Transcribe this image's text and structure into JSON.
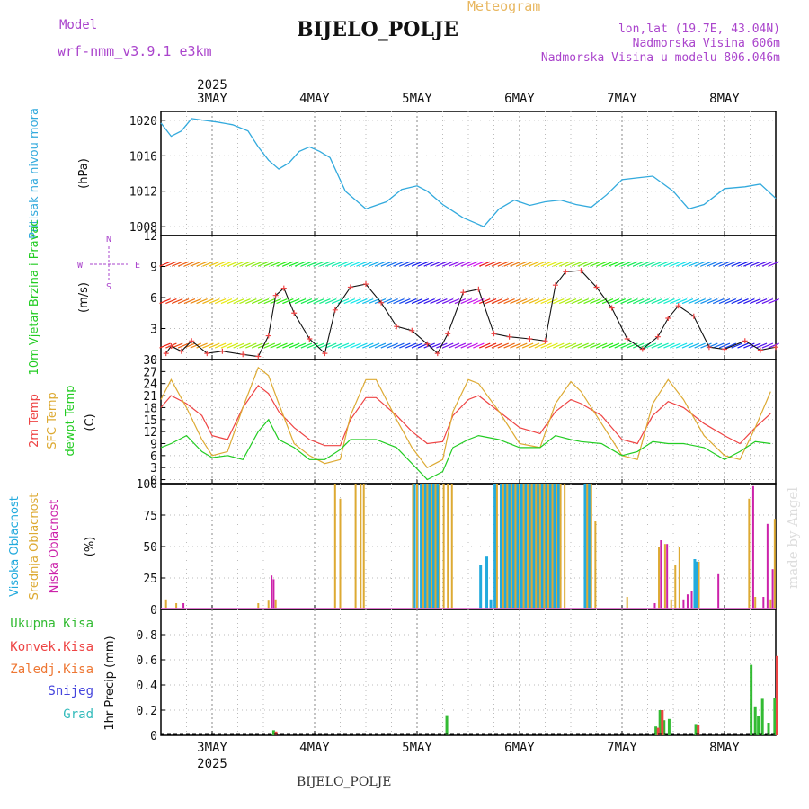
{
  "header": {
    "meteogram_label": "Meteogram",
    "model_label": "Model",
    "model_name": "wrf-nmm_v3.9.1  e3km",
    "station": "BIJELO_POLJE",
    "coords": "lon,lat (19.7E, 43.04N)",
    "altitude": "Nadmorska Visina 606m",
    "model_altitude": "Nadmorska Visina u modelu 806.046m"
  },
  "footer": {
    "station": "BIJELO_POLJE",
    "credit": "made by Angel"
  },
  "colors": {
    "pressure": "#33aadd",
    "temp2m": "#ee4444",
    "sfc": "#ddaa33",
    "dewpt": "#22cc22",
    "high_cloud": "#22aadd",
    "mid_cloud": "#ddaa33",
    "low_cloud": "#cc22aa",
    "total_precip": "#33bb33",
    "conv_precip": "#ee4444",
    "frozen_precip": "#ee7733",
    "snow": "#4444dd",
    "grad": "#33bbbb",
    "purple_text": "#aa44cc"
  },
  "chart_data": {
    "type": "line",
    "title": "Meteogram BIJELO_POLJE",
    "time_axis": {
      "start_day": 2.5,
      "end_day": 8.5,
      "day_labels": [
        "3MAY",
        "4MAY",
        "5MAY",
        "6MAY",
        "7MAY",
        "8MAY"
      ],
      "day_values": [
        3,
        4,
        5,
        6,
        7,
        8
      ],
      "year_label": "2025"
    },
    "panels": [
      {
        "id": "pressure",
        "ylabel": "(hPa)",
        "side_label": "Pritisak na nivou mora",
        "ylim": [
          1007,
          1021
        ],
        "yticks": [
          1008,
          1012,
          1016,
          1020
        ],
        "series": [
          {
            "name": "Pritisak na nivou mora",
            "x": [
              2.5,
              2.6,
              2.7,
              2.8,
              2.92,
              3.05,
              3.2,
              3.35,
              3.45,
              3.55,
              3.65,
              3.75,
              3.85,
              3.95,
              4.05,
              4.15,
              4.3,
              4.5,
              4.7,
              4.85,
              5.0,
              5.1,
              5.25,
              5.45,
              5.55,
              5.65,
              5.8,
              5.95,
              6.1,
              6.25,
              6.4,
              6.55,
              6.7,
              6.85,
              7.0,
              7.15,
              7.3,
              7.5,
              7.65,
              7.8,
              8.0,
              8.2,
              8.35,
              8.5
            ],
            "y": [
              1019.7,
              1018.2,
              1018.8,
              1020.2,
              1020.0,
              1019.8,
              1019.5,
              1018.8,
              1017.0,
              1015.5,
              1014.5,
              1015.2,
              1016.5,
              1017.0,
              1016.5,
              1015.8,
              1012.0,
              1010.0,
              1010.8,
              1012.2,
              1012.6,
              1012.0,
              1010.5,
              1009.0,
              1008.5,
              1008.0,
              1010.0,
              1011.0,
              1010.4,
              1010.8,
              1011.0,
              1010.5,
              1010.2,
              1011.6,
              1013.3,
              1013.5,
              1013.7,
              1012.0,
              1010.0,
              1010.5,
              1012.3,
              1012.5,
              1012.8,
              1011.2
            ]
          }
        ]
      },
      {
        "id": "wind",
        "ylabel": "(m/s)",
        "side_label": "10m Vjetar Brzina i Pravac",
        "compass": {
          "n": "N",
          "w": "W",
          "e": "E",
          "s": "S"
        },
        "ylim": [
          0,
          12
        ],
        "yticks": [
          0,
          3,
          6,
          9,
          12
        ],
        "series": [
          {
            "name": "10m wind speed",
            "x": [
              2.55,
              2.6,
              2.7,
              2.8,
              2.95,
              3.1,
              3.3,
              3.45,
              3.55,
              3.62,
              3.7,
              3.8,
              3.95,
              4.1,
              4.2,
              4.35,
              4.5,
              4.65,
              4.8,
              4.95,
              5.1,
              5.2,
              5.3,
              5.45,
              5.6,
              5.75,
              5.9,
              6.1,
              6.25,
              6.35,
              6.45,
              6.6,
              6.75,
              6.9,
              7.05,
              7.2,
              7.35,
              7.45,
              7.55,
              7.7,
              7.85,
              8.0,
              8.2,
              8.35,
              8.5
            ],
            "y": [
              0.6,
              1.3,
              0.8,
              1.8,
              0.6,
              0.8,
              0.5,
              0.3,
              2.3,
              6.2,
              6.9,
              4.5,
              2.0,
              0.6,
              4.8,
              7.0,
              7.3,
              5.5,
              3.2,
              2.8,
              1.5,
              0.6,
              2.5,
              6.5,
              6.8,
              2.5,
              2.2,
              2.0,
              1.8,
              7.2,
              8.5,
              8.6,
              7.0,
              5.0,
              2.0,
              1.0,
              2.2,
              4.0,
              5.2,
              4.2,
              1.2,
              1.0,
              1.8,
              0.9,
              1.2
            ]
          }
        ]
      },
      {
        "id": "temperature",
        "ylabel": "(C)",
        "side_labels": [
          "2m Temp",
          "SFC Temp",
          "dewpt Temp"
        ],
        "ylim": [
          -1,
          30
        ],
        "yticks": [
          0,
          3,
          6,
          9,
          12,
          15,
          18,
          21,
          24,
          27,
          30
        ],
        "series": [
          {
            "name": "2m Temp",
            "x": [
              2.5,
              2.6,
              2.75,
              2.9,
              3.0,
              3.15,
              3.3,
              3.45,
              3.55,
              3.65,
              3.8,
              3.95,
              4.1,
              4.25,
              4.35,
              4.5,
              4.6,
              4.8,
              4.95,
              5.1,
              5.25,
              5.35,
              5.5,
              5.6,
              5.8,
              6.0,
              6.2,
              6.35,
              6.5,
              6.6,
              6.8,
              7.0,
              7.15,
              7.3,
              7.45,
              7.6,
              7.8,
              8.0,
              8.15,
              8.3,
              8.45
            ],
            "y": [
              18.0,
              21.0,
              19.0,
              16.0,
              11.0,
              10.0,
              18.0,
              23.5,
              21.5,
              17.0,
              13.0,
              10.0,
              8.5,
              8.5,
              15.0,
              20.5,
              20.5,
              16.0,
              12.0,
              9.0,
              9.5,
              16.0,
              20.0,
              21.0,
              17.0,
              13.0,
              11.5,
              17.0,
              20.0,
              19.0,
              16.0,
              10.0,
              9.0,
              16.0,
              19.5,
              18.0,
              14.0,
              11.0,
              9.0,
              13.0,
              16.5
            ]
          },
          {
            "name": "SFC Temp",
            "x": [
              2.5,
              2.6,
              2.75,
              2.9,
              3.0,
              3.15,
              3.3,
              3.45,
              3.55,
              3.65,
              3.8,
              3.95,
              4.1,
              4.25,
              4.35,
              4.5,
              4.6,
              4.8,
              4.95,
              5.1,
              5.25,
              5.35,
              5.5,
              5.6,
              5.8,
              6.0,
              6.2,
              6.35,
              6.5,
              6.6,
              6.8,
              7.0,
              7.15,
              7.3,
              7.45,
              7.6,
              7.8,
              8.0,
              8.15,
              8.3,
              8.45
            ],
            "y": [
              20.0,
              25.0,
              18.0,
              10.0,
              6.0,
              7.0,
              18.0,
              28.0,
              26.0,
              19.0,
              9.0,
              6.0,
              4.0,
              5.0,
              16.0,
              25.0,
              25.0,
              15.0,
              8.0,
              3.0,
              5.0,
              17.0,
              25.0,
              24.0,
              17.0,
              9.0,
              8.0,
              19.0,
              24.5,
              22.0,
              14.0,
              6.0,
              5.0,
              19.0,
              25.0,
              20.0,
              11.0,
              6.0,
              5.0,
              13.0,
              22.0
            ]
          },
          {
            "name": "dewpt Temp",
            "x": [
              2.5,
              2.6,
              2.75,
              2.9,
              3.0,
              3.15,
              3.3,
              3.45,
              3.55,
              3.65,
              3.8,
              3.95,
              4.1,
              4.25,
              4.35,
              4.5,
              4.6,
              4.8,
              4.95,
              5.1,
              5.25,
              5.35,
              5.5,
              5.6,
              5.8,
              6.0,
              6.2,
              6.35,
              6.5,
              6.6,
              6.8,
              7.0,
              7.15,
              7.3,
              7.45,
              7.6,
              7.8,
              8.0,
              8.15,
              8.3,
              8.45
            ],
            "y": [
              8.0,
              9.0,
              11.0,
              7.0,
              5.5,
              6.0,
              5.0,
              12.0,
              15.0,
              10.0,
              8.0,
              5.0,
              5.0,
              7.5,
              10.0,
              10.0,
              10.0,
              8.0,
              4.0,
              0.0,
              2.0,
              8.0,
              10.0,
              11.0,
              10.0,
              8.0,
              8.0,
              11.0,
              10.0,
              9.5,
              9.0,
              6.0,
              7.0,
              9.5,
              9.0,
              9.0,
              8.0,
              5.0,
              7.0,
              9.5,
              9.0
            ]
          }
        ]
      },
      {
        "id": "clouds",
        "ylabel": "(%)",
        "side_labels": [
          "Visoka Oblacnost",
          "Srednja Oblacnost",
          "Niska Oblacnost"
        ],
        "ylim": [
          0,
          100
        ],
        "yticks": [
          0,
          25,
          50,
          75,
          100
        ],
        "series": [
          {
            "name": "Visoka Oblacnost",
            "x": [
              4.97,
              5.0,
              5.04,
              5.08,
              5.12,
              5.16,
              5.2,
              5.62,
              5.68,
              5.72,
              5.76,
              5.82,
              5.86,
              5.9,
              5.94,
              5.98,
              6.02,
              6.06,
              6.1,
              6.14,
              6.18,
              6.22,
              6.26,
              6.3,
              6.34,
              6.38,
              6.64,
              6.68,
              7.71,
              7.73
            ],
            "y": [
              100,
              100,
              100,
              100,
              100,
              100,
              100,
              35,
              42,
              8,
              100,
              100,
              100,
              100,
              100,
              100,
              100,
              100,
              100,
              100,
              100,
              100,
              100,
              100,
              100,
              100,
              100,
              100,
              40,
              38
            ]
          },
          {
            "name": "Srednja Oblacnost",
            "x": [
              2.55,
              2.65,
              3.45,
              3.55,
              3.62,
              4.2,
              4.25,
              4.4,
              4.45,
              4.48,
              4.96,
              5.0,
              5.06,
              5.1,
              5.14,
              5.18,
              5.22,
              5.26,
              5.3,
              5.34,
              5.78,
              5.84,
              5.88,
              5.92,
              5.96,
              6.0,
              6.04,
              6.08,
              6.12,
              6.16,
              6.2,
              6.24,
              6.28,
              6.32,
              6.36,
              6.4,
              6.44,
              6.66,
              6.7,
              6.74,
              7.05,
              7.36,
              7.42,
              7.48,
              7.52,
              7.56,
              7.75,
              8.24,
              8.3,
              8.45,
              8.49
            ],
            "y": [
              8,
              5,
              5,
              7,
              8,
              100,
              88,
              100,
              100,
              100,
              100,
              100,
              100,
              100,
              100,
              100,
              100,
              100,
              100,
              100,
              100,
              100,
              100,
              100,
              100,
              100,
              100,
              100,
              100,
              100,
              100,
              100,
              100,
              100,
              100,
              100,
              100,
              100,
              100,
              70,
              10,
              50,
              52,
              8,
              35,
              50,
              38,
              88,
              10,
              8,
              72
            ]
          },
          {
            "name": "Niska Oblacnost",
            "x": [
              2.72,
              3.58,
              3.6,
              7.32,
              7.38,
              7.44,
              7.6,
              7.64,
              7.68,
              7.94,
              8.28,
              8.38,
              8.42,
              8.47
            ],
            "y": [
              5,
              27,
              24,
              5,
              55,
              52,
              8,
              12,
              15,
              28,
              98,
              10,
              68,
              32
            ]
          }
        ]
      },
      {
        "id": "precip",
        "ylabel": "1hr Precip (mm)",
        "side_labels": [
          "Ukupna  Kisa",
          "Konvek.Kisa",
          "Zaledj.Kisa",
          "Snijeg",
          "Grad"
        ],
        "ylim": [
          0,
          1.0
        ],
        "yticks": [
          0,
          0.2,
          0.4,
          0.6,
          0.8
        ],
        "series": [
          {
            "name": "Ukupna Kisa",
            "x": [
              3.6,
              5.29,
              7.33,
              7.37,
              7.41,
              7.46,
              7.72,
              8.26,
              8.3,
              8.33,
              8.37,
              8.43,
              8.49
            ],
            "y": [
              0.04,
              0.16,
              0.07,
              0.2,
              0.12,
              0.13,
              0.09,
              0.56,
              0.23,
              0.15,
              0.29,
              0.1,
              0.3
            ]
          },
          {
            "name": "Konvek.Kisa",
            "x": [
              3.61,
              7.34,
              7.38,
              7.73,
              8.5
            ],
            "y": [
              0.03,
              0.06,
              0.2,
              0.08,
              0.63
            ]
          }
        ]
      }
    ]
  }
}
